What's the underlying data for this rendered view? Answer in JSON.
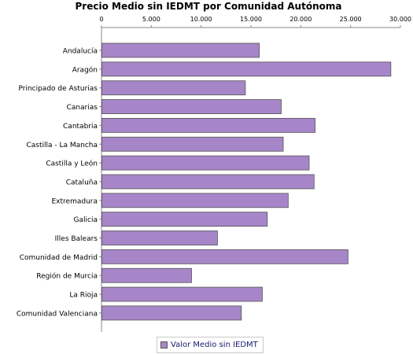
{
  "chart_data": {
    "type": "bar",
    "orientation": "horizontal",
    "title": "Precio Medio sin IEDMT por Comunidad Autónoma",
    "xlabel": "",
    "ylabel": "",
    "xlim": [
      0,
      30000
    ],
    "ticks": [
      0,
      5000,
      10000,
      15000,
      20000,
      25000,
      30000
    ],
    "tick_labels": [
      "0",
      "5.000",
      "10.000",
      "15.000",
      "20.000",
      "25.000",
      "30.000"
    ],
    "axis_position": "top",
    "grid": false,
    "legend_position": "bottom",
    "categories": [
      "Andalucía",
      "Aragón",
      "Principado de Asturias",
      "Canarias",
      "Cantabria",
      "Castilla - La Mancha",
      "Castilla y León",
      "Cataluña",
      "Extremadura",
      "Galicia",
      "Illes Balears",
      "Comunidad de Madrid",
      "Región de Murcia",
      "La Rioja",
      "Comunidad Valenciana"
    ],
    "series": [
      {
        "name": "Valor Medio sin IEDMT",
        "color": "#a686c8",
        "values": [
          15800,
          29000,
          14400,
          18000,
          21400,
          18200,
          20800,
          21300,
          18700,
          16600,
          11600,
          24700,
          9000,
          16100,
          14000
        ]
      }
    ]
  }
}
